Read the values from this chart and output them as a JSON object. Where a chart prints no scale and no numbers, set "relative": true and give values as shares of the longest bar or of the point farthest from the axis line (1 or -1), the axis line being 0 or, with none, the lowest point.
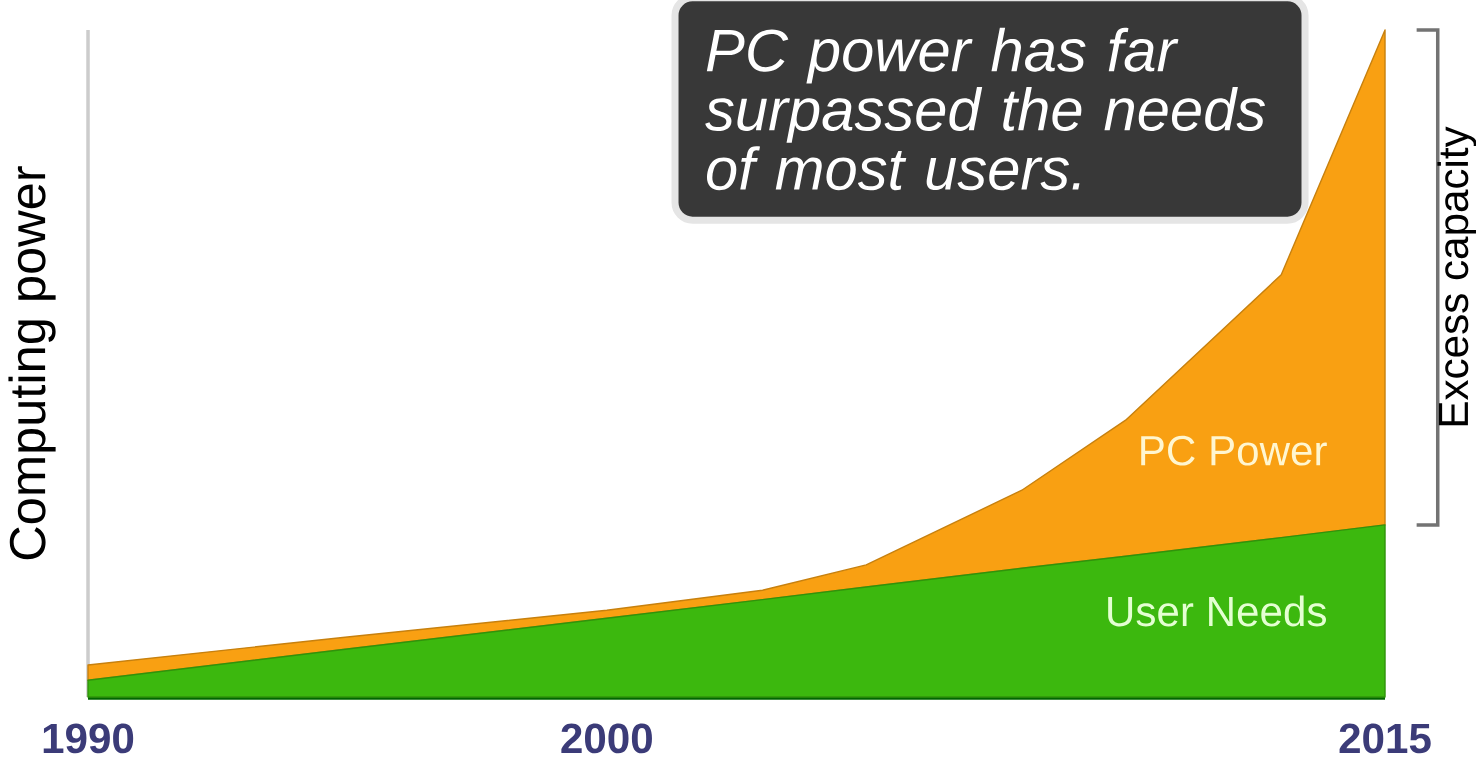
{
  "chart_data": {
    "type": "area",
    "relative": true,
    "stacked": true,
    "ylabel": "Computing power",
    "x": [
      1990,
      1995,
      2000,
      2003,
      2005,
      2008,
      2010,
      2013,
      2015
    ],
    "xlim": [
      1990,
      2015
    ],
    "xticks": [
      1990,
      2000,
      2015
    ],
    "series": [
      {
        "name": "User Needs",
        "color": "#3cb80e",
        "values": [
          0.025,
          0.072,
          0.118,
          0.146,
          0.165,
          0.193,
          0.211,
          0.239,
          0.258
        ]
      },
      {
        "name": "PC Power",
        "color": "#f9a012",
        "values": [
          0.023,
          0.018,
          0.012,
          0.014,
          0.033,
          0.117,
          0.204,
          0.394,
          0.742
        ]
      }
    ],
    "annotations": [
      "PC power has far surpassed the needs of most users.",
      "Excess capacity"
    ]
  }
}
